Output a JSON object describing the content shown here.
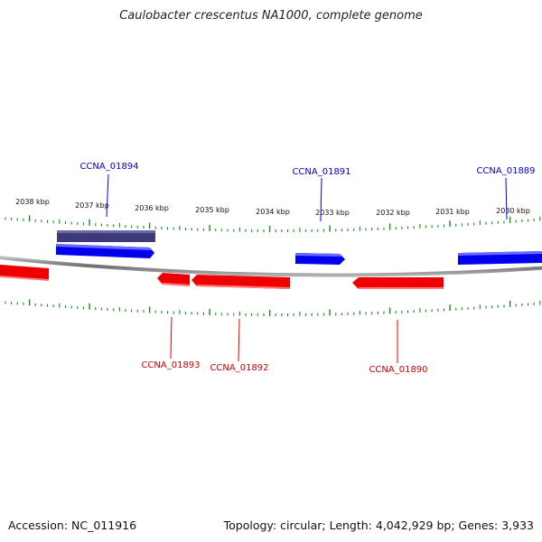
{
  "title": "Caulobacter crescentus NA1000, complete genome",
  "footer": {
    "accession": "Accession: NC_011916",
    "info": "Topology: circular; Length: 4,042,929 bp; Genes: 3,933"
  },
  "colors": {
    "forward": "#0000ee",
    "forward_selected": "#3d3a7a",
    "reverse": "#ee0000",
    "tick": "#1a8a1a",
    "backbone": "#8a8a8a"
  },
  "scale": {
    "unit": "kbp",
    "labels": [
      "2038 kbp",
      "2037 kbp",
      "2036 kbp",
      "2035 kbp",
      "2034 kbp",
      "2033 kbp",
      "2032 kbp",
      "2031 kbp",
      "2030 kbp"
    ]
  },
  "genes": [
    {
      "label": "CCNA_01894",
      "strand": "+",
      "labeled": true
    },
    {
      "label": "CCNA_01891",
      "strand": "+",
      "labeled": true
    },
    {
      "label": "CCNA_01889",
      "strand": "+",
      "labeled": true
    },
    {
      "label": "CCNA_01893",
      "strand": "-",
      "labeled": true
    },
    {
      "label": "CCNA_01892",
      "strand": "-",
      "labeled": true
    },
    {
      "label": "CCNA_01890",
      "strand": "-",
      "labeled": true
    }
  ]
}
